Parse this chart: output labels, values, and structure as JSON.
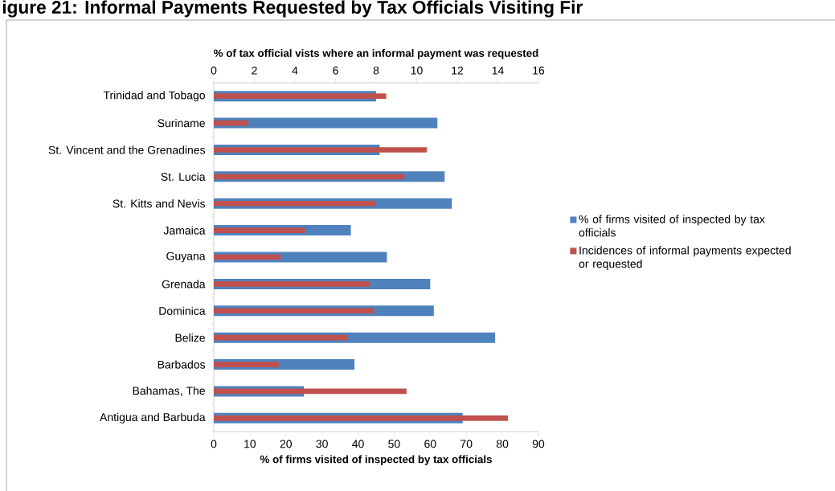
{
  "chart_data": {
    "type": "bar",
    "orientation": "horizontal",
    "title": "igure 21: Informal Payments Requested by Tax Officials Visiting Fir",
    "xlabel": "% of firms visited of inspected by tax officials",
    "x2label": "% of  tax official vists where an informal payment was requested",
    "categories": [
      "Trinidad and Tobago",
      "Suriname",
      "St. Vincent and the Grenadines",
      "St. Lucia",
      "St. Kitts and Nevis",
      "Jamaica",
      "Guyana",
      "Grenada",
      "Dominica",
      "Belize",
      "Barbados",
      "Bahamas, The",
      "Antigua and Barbuda"
    ],
    "series": [
      {
        "name": "% of firms visited of inspected by tax officials",
        "color": "#4f81bd",
        "values": [
          45,
          62,
          46,
          64,
          66,
          38,
          48,
          60,
          61,
          78,
          39,
          25,
          69
        ]
      },
      {
        "name": "Incidences of informal payments expected or requested",
        "color": "#c0504d",
        "axis": "x2",
        "values": [
          8.5,
          1.7,
          10.5,
          9.4,
          8.0,
          4.5,
          3.3,
          7.7,
          7.9,
          6.6,
          3.2,
          9.5,
          14.5
        ]
      }
    ],
    "xlim": [
      0,
      90
    ],
    "xticks": [
      0,
      10,
      20,
      30,
      40,
      50,
      60,
      70,
      80,
      90
    ],
    "x2lim": [
      0,
      16
    ],
    "x2ticks": [
      0,
      2,
      4,
      6,
      8,
      10,
      12,
      14,
      16
    ],
    "grid": false,
    "legend": "right"
  }
}
